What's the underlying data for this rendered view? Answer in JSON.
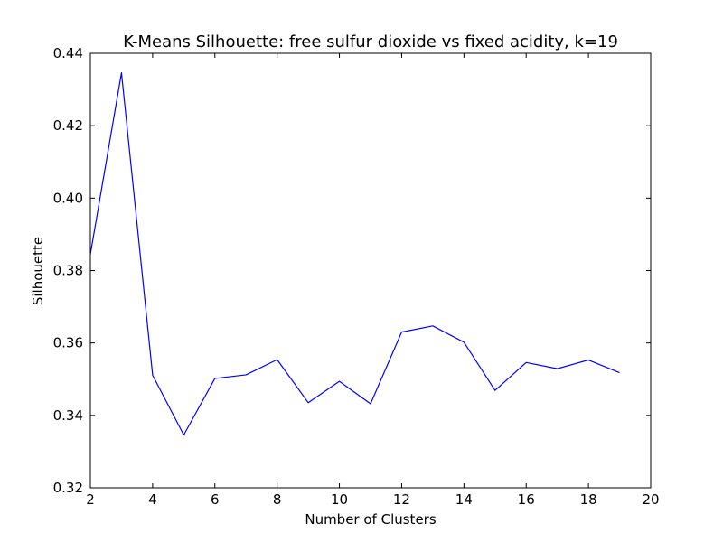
{
  "chart_data": {
    "type": "line",
    "title": "K-Means Silhouette: free sulfur dioxide vs fixed acidity, k=19",
    "xlabel": "Number of Clusters",
    "ylabel": "Silhouette",
    "xlim": [
      2,
      20
    ],
    "ylim": [
      0.32,
      0.44
    ],
    "xticks": [
      2,
      4,
      6,
      8,
      10,
      12,
      14,
      16,
      18,
      20
    ],
    "xtick_labels": [
      "2",
      "4",
      "6",
      "8",
      "10",
      "12",
      "14",
      "16",
      "18",
      "20"
    ],
    "yticks": [
      0.32,
      0.34,
      0.36,
      0.38,
      0.4,
      0.42,
      0.44
    ],
    "ytick_labels": [
      "0.32",
      "0.34",
      "0.36",
      "0.38",
      "0.40",
      "0.42",
      "0.44"
    ],
    "grid": false,
    "series": [
      {
        "color": "#0000ff",
        "x": [
          2,
          3,
          4,
          5,
          6,
          7,
          8,
          9,
          10,
          11,
          12,
          13,
          14,
          15,
          16,
          17,
          18,
          19
        ],
        "y": [
          0.3845,
          0.4346,
          0.3511,
          0.3346,
          0.3502,
          0.3512,
          0.3554,
          0.3435,
          0.3494,
          0.3432,
          0.363,
          0.3647,
          0.3602,
          0.3469,
          0.3546,
          0.3529,
          0.3553,
          0.3518
        ]
      }
    ]
  }
}
